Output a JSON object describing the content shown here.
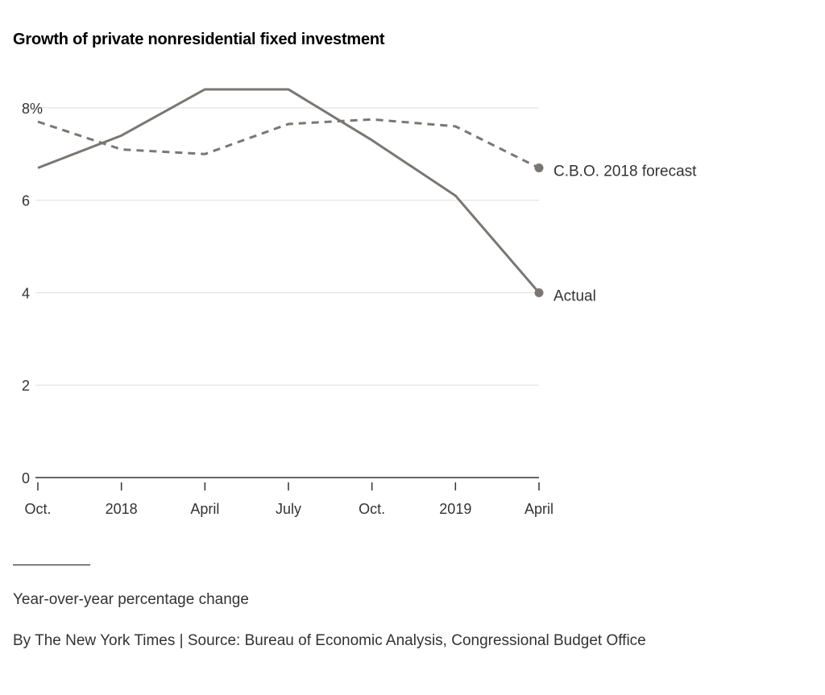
{
  "chart_data": {
    "type": "line",
    "title": "Growth of private nonresidential fixed investment",
    "xlabel": "",
    "ylabel": "",
    "categories": [
      "Oct.",
      "2018",
      "April",
      "July",
      "Oct.",
      "2019",
      "April"
    ],
    "ylim": [
      0,
      8.8
    ],
    "yticks": [
      {
        "value": 0,
        "label": "0"
      },
      {
        "value": 2,
        "label": "2"
      },
      {
        "value": 4,
        "label": "4"
      },
      {
        "value": 6,
        "label": "6"
      },
      {
        "value": 8,
        "label": "8%"
      }
    ],
    "grid": true,
    "series": [
      {
        "name": "Actual",
        "values": [
          6.7,
          7.4,
          8.4,
          8.4,
          7.3,
          6.1,
          4.0
        ],
        "color": "#7a7773",
        "dash": false
      },
      {
        "name": "C.B.O. 2018 forecast",
        "values": [
          7.7,
          7.1,
          7.0,
          7.65,
          7.75,
          7.6,
          6.7
        ],
        "color": "#7a7773",
        "dash": true
      }
    ]
  },
  "footer": {
    "note": "Year-over-year percentage change",
    "credit": "By The New York Times | Source: Bureau of Economic Analysis, Congressional Budget Office"
  }
}
